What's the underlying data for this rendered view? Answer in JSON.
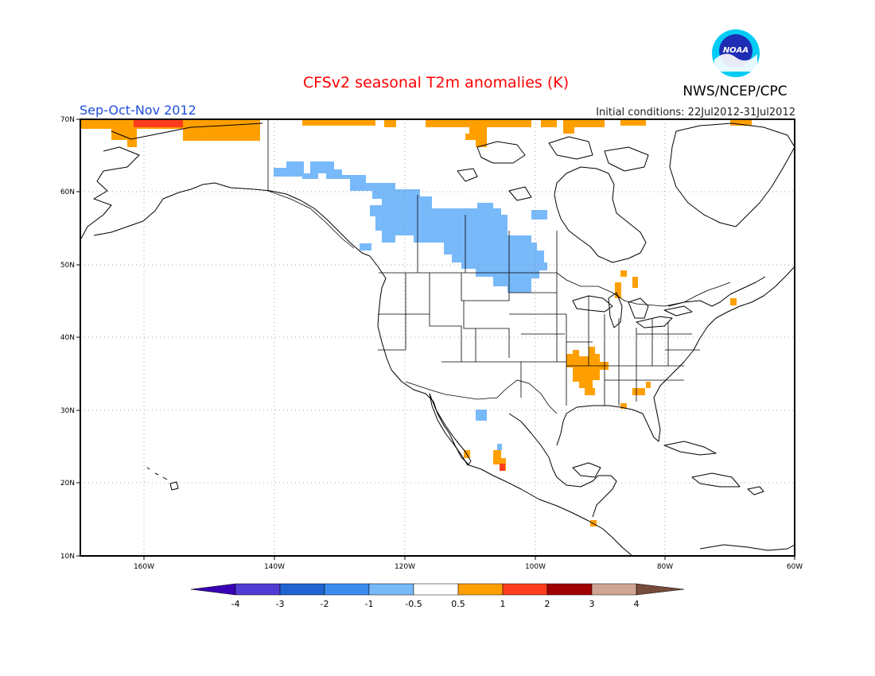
{
  "header": {
    "title": "CFSv2 seasonal T2m anomalies (K)",
    "season": "Sep-Oct-Nov 2012",
    "initial_conditions": "Initial conditions: 22Jul2012-31Jul2012",
    "agency": "NWS/NCEP/CPC",
    "logo_text": "NOAA"
  },
  "map": {
    "lat_labels": [
      "70N",
      "60N",
      "50N",
      "40N",
      "30N",
      "20N",
      "10N"
    ],
    "lon_labels": [
      "160W",
      "140W",
      "120W",
      "100W",
      "80W",
      "60W"
    ],
    "lat_range": [
      10,
      70
    ],
    "lon_range": [
      -172,
      -60
    ]
  },
  "colorbar": {
    "labels": [
      "-4",
      "-3",
      "-2",
      "-1",
      "-0.5",
      "0.5",
      "1",
      "2",
      "3",
      "4"
    ],
    "colors": [
      "#3700b4",
      "#503cd2",
      "#1f64d0",
      "#3c8cf0",
      "#78b9fa",
      "#ffffff",
      "#ffa000",
      "#ff3c1e",
      "#a00000",
      "#d0a494",
      "#774b3b"
    ]
  },
  "anomalies": {
    "warm_color": "#ffa000",
    "hot_color": "#ff3c1e",
    "cool_color": "#78b9fa"
  }
}
